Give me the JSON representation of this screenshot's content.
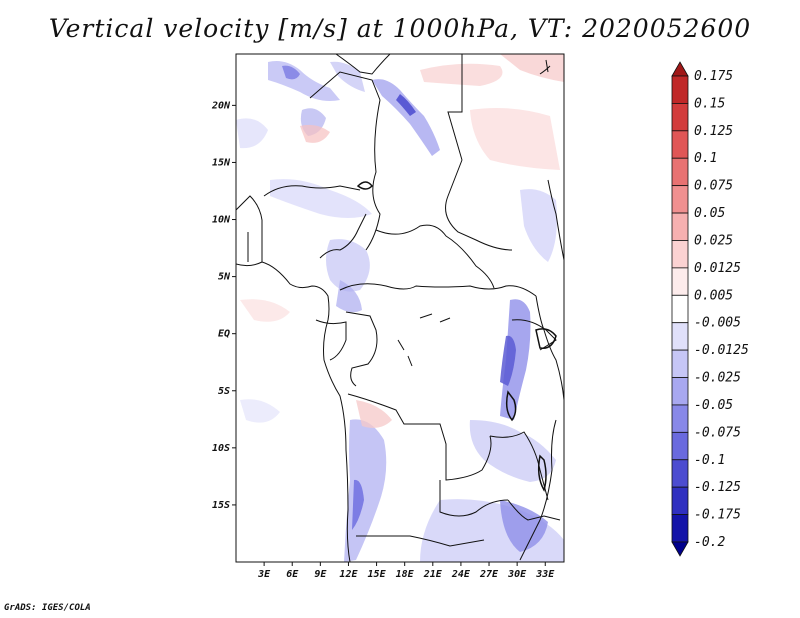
{
  "title": "Vertical velocity [m/s] at 1000hPa, VT: 2020052600",
  "credit": "GrADS: IGES/COLA",
  "map": {
    "lon_range": [
      0,
      35
    ],
    "lat_range": [
      -20,
      24.5
    ],
    "x_ticks": [
      "3E",
      "6E",
      "9E",
      "12E",
      "15E",
      "18E",
      "21E",
      "24E",
      "27E",
      "30E",
      "33E"
    ],
    "y_ticks": [
      "20N",
      "15N",
      "10N",
      "5N",
      "EQ",
      "5S",
      "10S",
      "15S"
    ]
  },
  "colorbar": {
    "levels": [
      "0.175",
      "0.15",
      "0.125",
      "0.1",
      "0.075",
      "0.05",
      "0.025",
      "0.0125",
      "0.005",
      "-0.005",
      "-0.0125",
      "-0.025",
      "-0.05",
      "-0.075",
      "-0.1",
      "-0.125",
      "-0.175",
      "-0.2"
    ],
    "colors": [
      "#a01818",
      "#c02828",
      "#d23c3c",
      "#e05656",
      "#e87272",
      "#f09090",
      "#f6b0b0",
      "#fbd2d2",
      "#fdecec",
      "#ffffff",
      "#e0e0fa",
      "#c6c6f6",
      "#a8a8f0",
      "#8888e8",
      "#6a6ade",
      "#4c4cd0",
      "#3030c0",
      "#1414a8",
      "#00008c"
    ]
  }
}
